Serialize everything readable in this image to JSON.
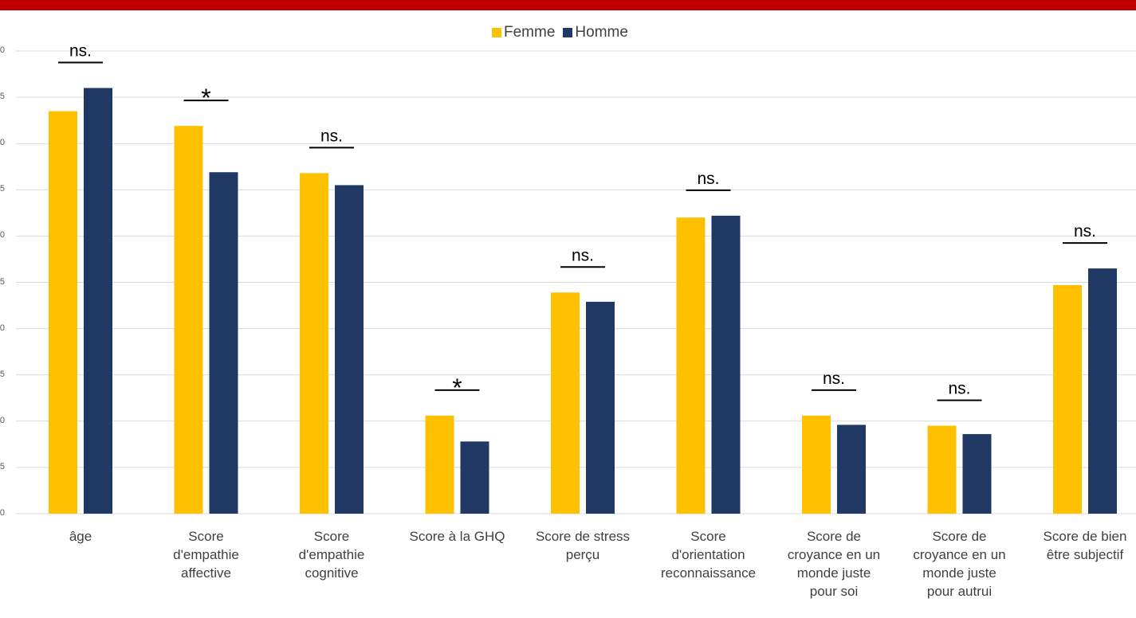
{
  "colors": {
    "topbar": "#c00000",
    "femme": "#ffc000",
    "homme": "#203864",
    "grid": "#d9d9d9",
    "text": "#404040"
  },
  "legend": {
    "femme": "Femme",
    "homme": "Homme"
  },
  "chart_data": {
    "type": "bar",
    "categories": [
      "âge",
      "Score\nd'empathie\naffective",
      "Score\nd'empathie\ncognitive",
      "Score à la GHQ",
      "Score de stress\nperçu",
      "Score\nd'orientation\nreconnaissance",
      "Score de\ncroyance en un\nmonde juste\npour soi",
      "Score de\ncroyance en un\nmonde juste\npour autrui",
      "Score de bien\nêtre subjectif"
    ],
    "series": [
      {
        "name": "Femme",
        "values": [
          43.5,
          41.9,
          36.8,
          10.6,
          23.9,
          32.0,
          10.6,
          9.5,
          24.7
        ]
      },
      {
        "name": "Homme",
        "values": [
          46.0,
          36.9,
          35.5,
          7.8,
          22.9,
          32.2,
          9.6,
          8.6,
          26.5
        ]
      }
    ],
    "significance": [
      "ns.",
      "*",
      "ns.",
      "*",
      "ns.",
      "ns.",
      "ns.",
      "ns.",
      "ns."
    ],
    "yticks": [
      "0",
      "5",
      "0",
      "5",
      "0",
      "5",
      "0",
      "5",
      "0",
      "5",
      "0"
    ],
    "ylim": [
      0,
      50
    ],
    "grid": true,
    "legend_position": "top"
  }
}
